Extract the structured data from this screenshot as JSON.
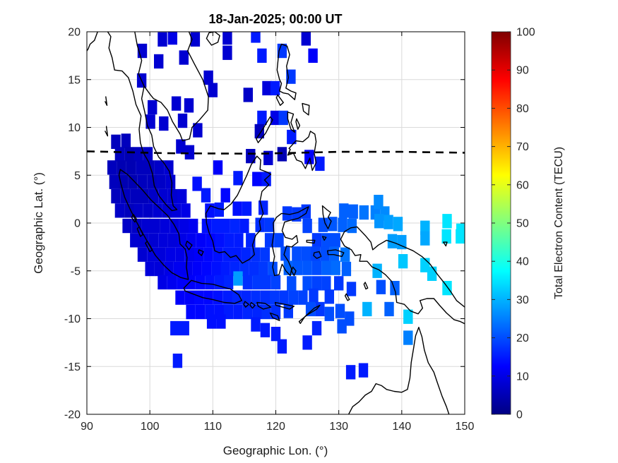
{
  "title": "18-Jan-2025; 00:00 UT",
  "axes": {
    "xlabel": "Geographic Lon. (°)",
    "ylabel": "Geographic Lat. (°)",
    "xlim": [
      90,
      150
    ],
    "ylim": [
      -20,
      20
    ],
    "x_ticks": [
      90,
      100,
      110,
      120,
      130,
      140,
      150
    ],
    "y_ticks": [
      -20,
      -15,
      -10,
      -5,
      0,
      5,
      10,
      15,
      20
    ],
    "grid": true
  },
  "colorbar": {
    "label": "Total Electron Content (TECU)",
    "min": 0,
    "max": 100,
    "ticks": [
      0,
      10,
      20,
      30,
      40,
      50,
      60,
      70,
      80,
      90,
      100
    ],
    "colormap": "jet"
  },
  "style": {
    "coastline_color": "#000000",
    "grid_color": "#dadada",
    "dashed_line_color": "#000000",
    "axis_color": "#000000"
  },
  "chart_data": {
    "type": "heatmap",
    "title": "18-Jan-2025; 00:00 UT",
    "xlabel": "Geographic Lon. (°)",
    "ylabel": "Geographic Lat. (°)",
    "value_label": "Total Electron Content (TECU)",
    "value_range": [
      0,
      100
    ],
    "cell_size_deg": 1.5,
    "magnetic_equator": [
      [
        90,
        7.5
      ],
      [
        103,
        7.3
      ],
      [
        117,
        7.25
      ],
      [
        130,
        7.45
      ],
      [
        140,
        7.45
      ],
      [
        150,
        7.35
      ]
    ],
    "cells": [
      [
        102.0,
        19.2,
        8
      ],
      [
        103.6,
        19.4,
        10
      ],
      [
        107.2,
        19.2,
        8
      ],
      [
        112.3,
        19.4,
        8
      ],
      [
        116.8,
        19.6,
        15
      ],
      [
        124.8,
        19.3,
        8
      ],
      [
        98.8,
        18.0,
        8
      ],
      [
        112.3,
        17.8,
        8
      ],
      [
        121.0,
        18.0,
        18
      ],
      [
        125.9,
        17.5,
        12
      ],
      [
        101.4,
        16.9,
        8
      ],
      [
        105.4,
        17.3,
        8
      ],
      [
        117.8,
        17.5,
        15
      ],
      [
        98.7,
        14.9,
        8
      ],
      [
        109.3,
        15.2,
        8
      ],
      [
        122.4,
        15.3,
        18
      ],
      [
        110.0,
        13.9,
        8
      ],
      [
        115.6,
        13.4,
        7
      ],
      [
        118.6,
        14.1,
        9
      ],
      [
        119.9,
        14.1,
        15
      ],
      [
        104.2,
        12.5,
        8
      ],
      [
        106.2,
        12.3,
        8
      ],
      [
        100.4,
        12.1,
        8
      ],
      [
        117.8,
        11.0,
        15
      ],
      [
        119.9,
        11.0,
        10
      ],
      [
        121.2,
        11.0,
        18
      ],
      [
        100.1,
        10.6,
        8
      ],
      [
        102.2,
        10.4,
        8
      ],
      [
        105.2,
        10.7,
        8
      ],
      [
        107.6,
        9.7,
        8
      ],
      [
        117.4,
        9.6,
        6
      ],
      [
        122.5,
        9.0,
        15
      ],
      [
        94.6,
        8.5,
        6
      ],
      [
        96.2,
        8.6,
        6
      ],
      [
        104.9,
        8.0,
        8
      ],
      [
        106.3,
        7.4,
        8
      ],
      [
        116.0,
        7.0,
        6
      ],
      [
        118.8,
        6.8,
        8
      ],
      [
        121.0,
        7.2,
        5
      ],
      [
        125.3,
        6.9,
        12
      ],
      [
        127.0,
        6.2,
        15
      ],
      [
        95.2,
        7.2,
        6
      ],
      [
        96.7,
        7.2,
        5
      ],
      [
        98.2,
        7.2,
        6
      ],
      [
        99.7,
        7.2,
        7
      ],
      [
        94.0,
        5.8,
        6
      ],
      [
        95.5,
        5.8,
        5
      ],
      [
        97.0,
        5.8,
        5
      ],
      [
        98.5,
        5.8,
        6
      ],
      [
        100.0,
        5.8,
        6
      ],
      [
        101.5,
        5.8,
        7
      ],
      [
        103.0,
        5.8,
        8
      ],
      [
        110.8,
        5.8,
        12
      ],
      [
        94.3,
        4.3,
        6
      ],
      [
        95.8,
        4.3,
        5
      ],
      [
        97.3,
        4.3,
        5
      ],
      [
        98.8,
        4.3,
        6
      ],
      [
        100.3,
        4.3,
        6
      ],
      [
        101.8,
        4.3,
        7
      ],
      [
        103.3,
        4.3,
        8
      ],
      [
        107.5,
        4.1,
        14
      ],
      [
        114.0,
        4.7,
        15
      ],
      [
        117.0,
        4.6,
        13
      ],
      [
        118.5,
        4.6,
        15
      ],
      [
        94.6,
        2.8,
        6
      ],
      [
        96.1,
        2.8,
        6
      ],
      [
        97.6,
        2.8,
        6
      ],
      [
        99.1,
        2.8,
        6
      ],
      [
        100.6,
        2.8,
        7
      ],
      [
        102.1,
        2.8,
        8
      ],
      [
        103.6,
        2.8,
        8
      ],
      [
        105.1,
        2.8,
        9
      ],
      [
        108.9,
        2.9,
        15
      ],
      [
        112.0,
        2.9,
        13
      ],
      [
        95.2,
        1.3,
        7
      ],
      [
        96.7,
        1.3,
        6
      ],
      [
        98.2,
        1.3,
        7
      ],
      [
        99.7,
        1.3,
        7
      ],
      [
        101.2,
        1.3,
        8
      ],
      [
        102.7,
        1.3,
        8
      ],
      [
        104.2,
        1.3,
        9
      ],
      [
        105.7,
        1.3,
        10
      ],
      [
        109.5,
        1.3,
        14
      ],
      [
        111.0,
        1.4,
        15
      ],
      [
        113.9,
        1.5,
        14
      ],
      [
        115.4,
        1.5,
        15
      ],
      [
        118.0,
        1.6,
        16
      ],
      [
        121.8,
        1.0,
        18
      ],
      [
        123.3,
        0.9,
        18
      ],
      [
        124.8,
        1.2,
        18
      ],
      [
        130.8,
        1.3,
        22
      ],
      [
        132.3,
        1.2,
        22
      ],
      [
        134.0,
        1.1,
        24
      ],
      [
        135.8,
        1.1,
        25
      ],
      [
        137.3,
        1.0,
        26
      ],
      [
        136.3,
        2.2,
        26
      ],
      [
        96.4,
        -0.3,
        7
      ],
      [
        97.9,
        -0.3,
        7
      ],
      [
        99.4,
        -0.3,
        8
      ],
      [
        100.9,
        -0.3,
        8
      ],
      [
        102.4,
        -0.3,
        9
      ],
      [
        103.9,
        -0.3,
        9
      ],
      [
        105.4,
        -0.3,
        10
      ],
      [
        106.9,
        -0.3,
        11
      ],
      [
        109.0,
        -0.3,
        14
      ],
      [
        110.5,
        -0.3,
        15
      ],
      [
        112.0,
        -0.3,
        15
      ],
      [
        113.5,
        -0.3,
        16
      ],
      [
        115.0,
        -0.3,
        15
      ],
      [
        117.5,
        -0.2,
        17
      ],
      [
        119.0,
        -0.2,
        18
      ],
      [
        125.0,
        -0.3,
        19
      ],
      [
        127.5,
        -0.2,
        20
      ],
      [
        129.0,
        -0.1,
        21
      ],
      [
        130.6,
        -0.2,
        22
      ],
      [
        132.1,
        -0.3,
        23
      ],
      [
        136.4,
        0.2,
        27
      ],
      [
        137.9,
        0.1,
        28
      ],
      [
        139.4,
        -0.1,
        29
      ],
      [
        143.7,
        -0.5,
        30
      ],
      [
        147.2,
        0.2,
        35
      ],
      [
        149.4,
        -0.8,
        35
      ],
      [
        97.6,
        -1.8,
        8
      ],
      [
        99.1,
        -1.8,
        8
      ],
      [
        100.6,
        -1.8,
        8
      ],
      [
        102.1,
        -1.8,
        9
      ],
      [
        103.6,
        -1.8,
        9
      ],
      [
        105.1,
        -1.8,
        10
      ],
      [
        106.6,
        -1.8,
        11
      ],
      [
        108.1,
        -1.8,
        12
      ],
      [
        109.6,
        -1.8,
        13
      ],
      [
        111.1,
        -1.8,
        14
      ],
      [
        112.6,
        -1.8,
        15
      ],
      [
        114.1,
        -1.8,
        15
      ],
      [
        116.0,
        -1.8,
        16
      ],
      [
        119.0,
        -1.8,
        18
      ],
      [
        120.5,
        -1.8,
        19
      ],
      [
        126.5,
        -1.8,
        18
      ],
      [
        128.0,
        -1.8,
        20
      ],
      [
        129.5,
        -1.8,
        20
      ],
      [
        138.5,
        -1.9,
        28
      ],
      [
        140.0,
        -2.0,
        28
      ],
      [
        143.7,
        -1.6,
        29
      ],
      [
        147.1,
        -1.4,
        35
      ],
      [
        149.3,
        -1.4,
        35
      ],
      [
        98.8,
        -3.3,
        8
      ],
      [
        100.3,
        -3.3,
        9
      ],
      [
        101.8,
        -3.3,
        9
      ],
      [
        103.3,
        -3.3,
        10
      ],
      [
        104.8,
        -3.3,
        10
      ],
      [
        106.3,
        -3.3,
        11
      ],
      [
        107.8,
        -3.3,
        12
      ],
      [
        109.3,
        -3.3,
        13
      ],
      [
        110.8,
        -3.3,
        14
      ],
      [
        112.3,
        -3.3,
        15
      ],
      [
        113.8,
        -3.3,
        15
      ],
      [
        115.3,
        -3.3,
        16
      ],
      [
        116.8,
        -3.3,
        17
      ],
      [
        118.3,
        -3.3,
        18
      ],
      [
        121.5,
        -3.2,
        20
      ],
      [
        123.3,
        -3.2,
        20
      ],
      [
        124.8,
        -3.2,
        20
      ],
      [
        126.3,
        -3.2,
        19
      ],
      [
        127.8,
        -3.2,
        20
      ],
      [
        129.3,
        -3.2,
        22
      ],
      [
        131.0,
        -3.3,
        24
      ],
      [
        140.2,
        -4.0,
        32
      ],
      [
        143.7,
        -4.4,
        33
      ],
      [
        100.0,
        -4.8,
        9
      ],
      [
        101.5,
        -4.8,
        9
      ],
      [
        103.0,
        -4.8,
        10
      ],
      [
        104.5,
        -4.8,
        11
      ],
      [
        106.0,
        -4.8,
        11
      ],
      [
        107.5,
        -4.8,
        12
      ],
      [
        109.0,
        -4.8,
        13
      ],
      [
        110.5,
        -4.8,
        14
      ],
      [
        112.0,
        -4.8,
        15
      ],
      [
        113.5,
        -4.8,
        16
      ],
      [
        115.0,
        -4.8,
        17
      ],
      [
        116.5,
        -4.8,
        17
      ],
      [
        118.0,
        -4.8,
        18
      ],
      [
        119.5,
        -4.8,
        20
      ],
      [
        122.0,
        -4.7,
        22
      ],
      [
        123.5,
        -4.7,
        21
      ],
      [
        125.0,
        -4.7,
        21
      ],
      [
        126.5,
        -4.7,
        20
      ],
      [
        128.0,
        -4.7,
        22
      ],
      [
        129.5,
        -4.7,
        23
      ],
      [
        131.2,
        -4.8,
        22
      ],
      [
        136.1,
        -5.0,
        30
      ],
      [
        144.8,
        -5.3,
        33
      ],
      [
        102.0,
        -6.2,
        10
      ],
      [
        103.5,
        -6.2,
        11
      ],
      [
        105.0,
        -6.2,
        12
      ],
      [
        106.5,
        -6.2,
        12
      ],
      [
        108.0,
        -6.2,
        13
      ],
      [
        109.5,
        -6.2,
        14
      ],
      [
        111.0,
        -6.2,
        15
      ],
      [
        112.5,
        -6.2,
        16
      ],
      [
        114.0,
        -5.8,
        28
      ],
      [
        115.5,
        -6.2,
        17
      ],
      [
        117.0,
        -6.2,
        18
      ],
      [
        118.5,
        -6.2,
        18
      ],
      [
        120.0,
        -6.2,
        19
      ],
      [
        122.5,
        -6.3,
        20
      ],
      [
        125.0,
        -6.3,
        20
      ],
      [
        126.5,
        -6.3,
        19
      ],
      [
        128.0,
        -6.3,
        19
      ],
      [
        130.0,
        -6.3,
        18
      ],
      [
        132.0,
        -6.9,
        18
      ],
      [
        136.7,
        -6.7,
        20
      ],
      [
        138.9,
        -6.8,
        22
      ],
      [
        147.2,
        -6.8,
        35
      ],
      [
        104.8,
        -7.8,
        12
      ],
      [
        106.3,
        -7.8,
        12
      ],
      [
        107.8,
        -7.8,
        13
      ],
      [
        109.3,
        -7.8,
        13
      ],
      [
        110.8,
        -7.8,
        14
      ],
      [
        112.3,
        -7.8,
        15
      ],
      [
        113.8,
        -7.8,
        16
      ],
      [
        115.3,
        -7.8,
        16
      ],
      [
        116.8,
        -7.8,
        17
      ],
      [
        118.3,
        -7.8,
        17
      ],
      [
        119.8,
        -7.8,
        18
      ],
      [
        121.3,
        -7.8,
        18
      ],
      [
        122.8,
        -7.8,
        19
      ],
      [
        124.3,
        -7.8,
        19
      ],
      [
        126.0,
        -7.6,
        18
      ],
      [
        128.5,
        -7.7,
        18
      ],
      [
        106.5,
        -9.3,
        13
      ],
      [
        108.0,
        -9.3,
        13
      ],
      [
        109.5,
        -9.3,
        14
      ],
      [
        111.0,
        -9.3,
        14
      ],
      [
        112.5,
        -9.3,
        15
      ],
      [
        114.0,
        -9.3,
        15
      ],
      [
        115.5,
        -9.3,
        16
      ],
      [
        117.0,
        -9.3,
        16
      ],
      [
        118.5,
        -9.3,
        17
      ],
      [
        120.0,
        -9.3,
        17
      ],
      [
        122.0,
        -9.2,
        18
      ],
      [
        125.5,
        -9.0,
        20
      ],
      [
        127.0,
        -9.0,
        18
      ],
      [
        128.5,
        -9.5,
        20
      ],
      [
        130.2,
        -9.2,
        20
      ],
      [
        131.7,
        -10.0,
        20
      ],
      [
        134.5,
        -9.0,
        30
      ],
      [
        138.0,
        -9.0,
        22
      ],
      [
        141.0,
        -9.8,
        33
      ],
      [
        104.0,
        -11.0,
        15
      ],
      [
        105.5,
        -11.0,
        15
      ],
      [
        109.8,
        -10.3,
        14
      ],
      [
        111.3,
        -10.3,
        14
      ],
      [
        116.8,
        -10.6,
        15
      ],
      [
        118.3,
        -11.2,
        15
      ],
      [
        120.0,
        -11.6,
        15
      ],
      [
        126.5,
        -11.0,
        16
      ],
      [
        130.5,
        -10.8,
        20
      ],
      [
        121.0,
        -12.9,
        15
      ],
      [
        125.0,
        -12.5,
        15
      ],
      [
        141.0,
        -12.0,
        25
      ],
      [
        104.4,
        -14.4,
        15
      ],
      [
        131.9,
        -15.6,
        15
      ],
      [
        133.9,
        -15.4,
        15
      ]
    ]
  }
}
